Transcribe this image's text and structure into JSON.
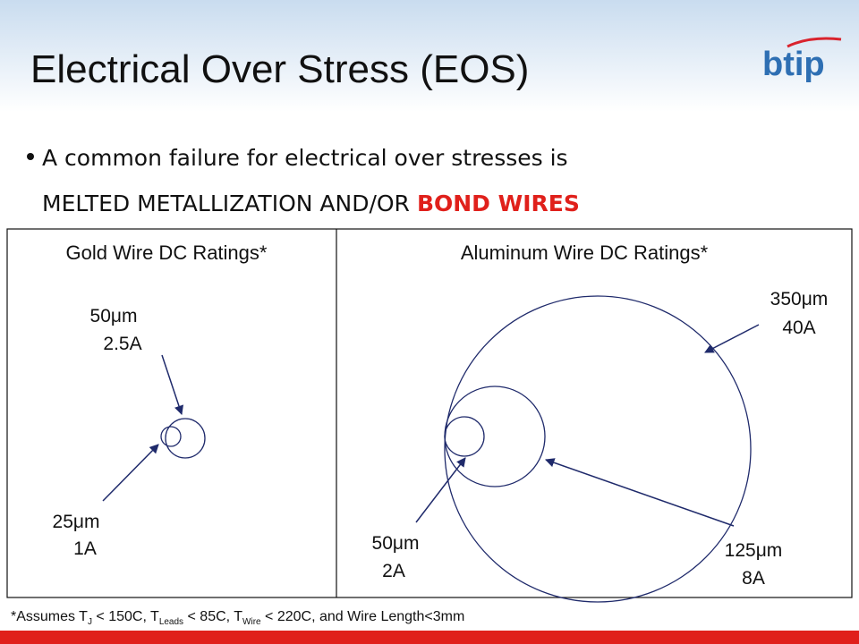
{
  "header": {
    "title": "Electrical Over Stress (EOS)",
    "logo": "btip"
  },
  "bullet": {
    "line1": "A common failure for electrical over stresses is",
    "line2": "MELTED METALLIZATION AND/OR",
    "highlight": "BOND WIRES"
  },
  "panels": [
    {
      "title": "Gold Wire DC Ratings*",
      "wires": [
        {
          "size": "50μm",
          "current": "2.5A"
        },
        {
          "size": "25μm",
          "current": "1A"
        }
      ]
    },
    {
      "title": "Aluminum Wire DC Ratings*",
      "wires": [
        {
          "size": "350μm",
          "current": "40A"
        },
        {
          "size": "50μm",
          "current": "2A"
        },
        {
          "size": "125μm",
          "current": "8A"
        }
      ]
    }
  ],
  "footnote": [
    "*Assumes T",
    "J",
    " < 150C, T",
    "Leads",
    " < 85C, T",
    "Wire",
    " < 220C, and Wire Length<3mm"
  ]
}
